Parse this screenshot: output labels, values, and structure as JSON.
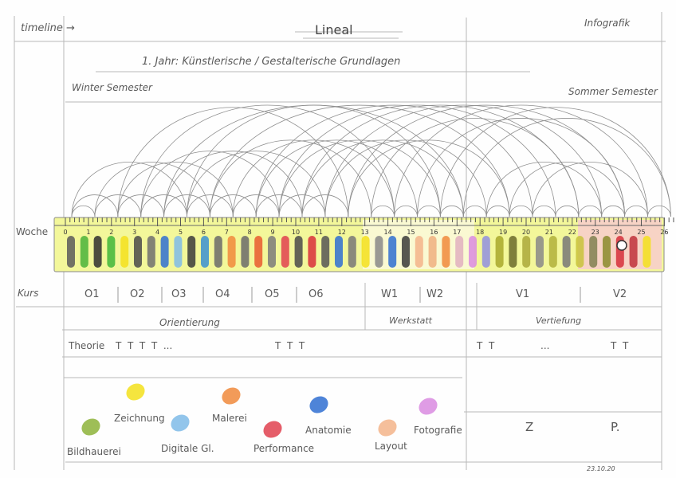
{
  "header": {
    "timeline": "timeline →",
    "title": "Lineal",
    "infografik": "Infografik",
    "subtitle": "1. Jahr: Künstlerische / Gestalterische Grundlagen",
    "winter": "Winter Semester",
    "summer": "Sommer Semester"
  },
  "row_labels": {
    "woche": "Woche",
    "kurs": "Kurs",
    "theorie": "Theorie"
  },
  "weeks": [
    "0",
    "1",
    "2",
    "3",
    "4",
    "5",
    "6",
    "7",
    "8",
    "9",
    "10",
    "11",
    "12",
    "13",
    "14",
    "15",
    "16",
    "17",
    "18",
    "19",
    "20",
    "21",
    "22",
    "23",
    "24",
    "25",
    "26"
  ],
  "courses": [
    "O1",
    "O2",
    "O3",
    "O4",
    "O5",
    "O6",
    "W1",
    "W2",
    "V1",
    "V2"
  ],
  "phases": {
    "orientierung": "Orientierung",
    "werkstatt": "Werkstatt",
    "vertiefung": "Vertiefung"
  },
  "theorie_marks": {
    "left": "T  T  T  T  ...",
    "mid": "T  T  T",
    "right1": "T  T",
    "right_dots": "...",
    "right2": "T  T"
  },
  "legend": [
    {
      "label": "Zeichnung",
      "color": "#f3e01c"
    },
    {
      "label": "Malerei",
      "color": "#f08a3c"
    },
    {
      "label": "Anatomie",
      "color": "#2f6fd1"
    },
    {
      "label": "Fotografie",
      "color": "#d98be0"
    },
    {
      "label": "Bildhauerei",
      "color": "#8db33a"
    },
    {
      "label": "Digitale Gl.",
      "color": "#7fbbe8"
    },
    {
      "label": "Performance",
      "color": "#e0414f"
    },
    {
      "label": "Layout",
      "color": "#f3b48a"
    }
  ],
  "extra": {
    "z": "Z",
    "p": "P.",
    "date": "23.10.20"
  }
}
